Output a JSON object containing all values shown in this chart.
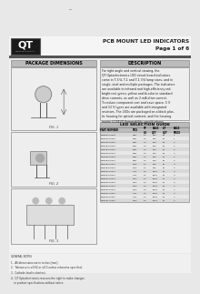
{
  "title_right": "PCB MOUNT LED INDICATORS\nPage 1 of 6",
  "logo_text": "QT",
  "logo_sub": "OPTOELECTRONICS",
  "page_bg": "#e8e8e8",
  "content_bg": "#f2f2f2",
  "section_left_title": "PACKAGE DIMENSIONS",
  "section_right_title": "DESCRIPTION",
  "section_table_title": "LED SELECTION GUIDE",
  "desc_text": "For right angle and vertical viewing, the\nQT Optoelectronics LED circuit board indicators\ncome in T-3/4, T-1 and T-1 3/4 lamp sizes, and in\nsingle, dual and multiple packages. The indicators\nare available in infrared and high-efficiency red,\nbright red, green, yellow and bi-color in standard\ndrive currents, as well as 2 mA drive current.\nTo reduce component cost and save space, 5 V\nand 12 V types are available with integrated\nresistors. The LEDs are packaged on a black plas-\ntic housing for optical contrast, and the housing\nmeets UL94V0 flammability specifications.",
  "footer_notes": "GENERAL NOTES\n1.  All dimensions are in inches [mm].\n2.  Tolerance is ±0.02 or ±0.5 unless otherwise specified.\n3.  Cathode lead is shortest.\n4.  QT Optoelectronics reserves the right to make changes\n    in product specifications without notice.",
  "fig1_label": "FIG. 1",
  "fig2_label": "FIG. 2",
  "fig3_label": "FIG. 3",
  "section_header_bg": "#bbbbbb",
  "section_header_text": "#000000",
  "table_bg_alt": "#d8d8d8",
  "box_border": "#888888",
  "header_bar_color": "#555555",
  "logo_bg": "#1a1a1a",
  "col_divider": 98
}
